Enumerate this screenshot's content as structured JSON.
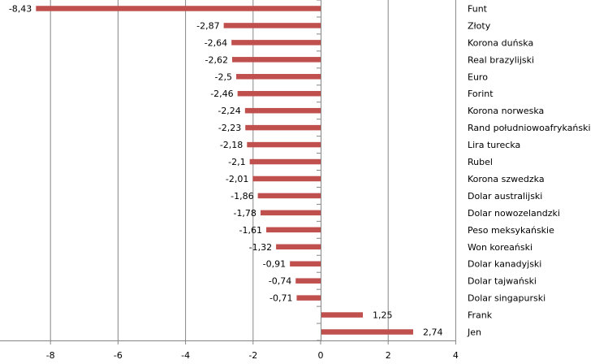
{
  "chart_data": {
    "type": "bar",
    "orientation": "horizontal",
    "title": "",
    "xlabel": "",
    "ylabel": "",
    "categories": [
      "Funt",
      "Złoty",
      "Korona duńska",
      "Real brazylijski",
      "Euro",
      "Forint",
      "Korona norweska",
      "Rand południowoafrykański",
      "Lira turecka",
      "Rubel",
      "Korona szwedzka",
      "Dolar australijski",
      "Dolar nowozelandzki",
      "Peso meksykańskie",
      "Won koreański",
      "Dolar kanadyjski",
      "Dolar tajwański",
      "Dolar singapurski",
      "Frank",
      "Jen"
    ],
    "values": [
      -8.43,
      -2.87,
      -2.64,
      -2.62,
      -2.5,
      -2.46,
      -2.24,
      -2.23,
      -2.18,
      -2.1,
      -2.01,
      -1.86,
      -1.78,
      -1.61,
      -1.32,
      -0.91,
      -0.74,
      -0.71,
      1.25,
      2.74
    ],
    "value_labels": [
      "-8,43",
      "-2,87",
      "-2,64",
      "-2,62",
      "-2,5",
      "-2,46",
      "-2,24",
      "-2,23",
      "-2,18",
      "-2,1",
      "-2,01",
      "-1,86",
      "-1,78",
      "-1,61",
      "-1,32",
      "-0,91",
      "-0,74",
      "-0,71",
      "1,25",
      "2,74"
    ],
    "xlim": [
      -9.5,
      4
    ],
    "xticks": [
      -8,
      -6,
      -4,
      -2,
      0,
      2,
      4
    ],
    "xtick_labels": [
      "-8",
      "-6",
      "-4",
      "-2",
      "0",
      "2",
      "4"
    ],
    "grid": true,
    "legend": "none",
    "bar_color": "#C0504D",
    "grid_color": "#868686"
  }
}
